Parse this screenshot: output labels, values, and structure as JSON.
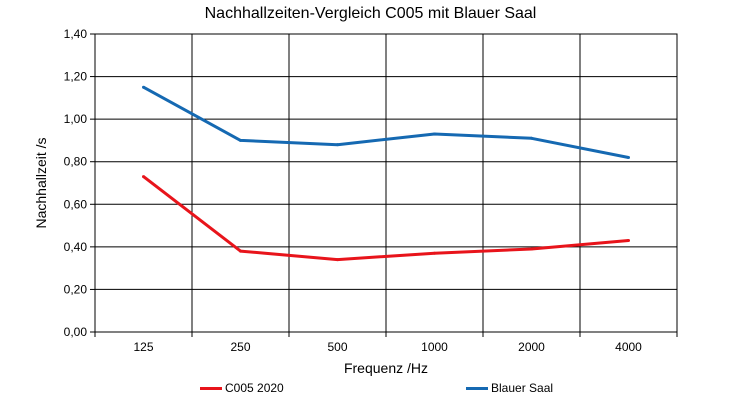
{
  "chart_data": {
    "type": "line",
    "title": "Nachhallzeiten-Vergleich C005 mit Blauer Saal",
    "xlabel": "Frequenz /Hz",
    "ylabel": "Nachhallzeit /s",
    "categories": [
      "125",
      "250",
      "500",
      "1000",
      "2000",
      "4000"
    ],
    "ylim": [
      0,
      1.4
    ],
    "yticks": [
      "0,00",
      "0,20",
      "0,40",
      "0,60",
      "0,80",
      "1,00",
      "1,20",
      "1,40"
    ],
    "grid": true,
    "legend_position": "bottom",
    "series": [
      {
        "name": "C005 2020",
        "color": "#e8141b",
        "values": [
          0.73,
          0.38,
          0.34,
          0.37,
          0.39,
          0.43
        ]
      },
      {
        "name": "Blauer Saal",
        "color": "#1569b2",
        "values": [
          1.15,
          0.9,
          0.88,
          0.93,
          0.91,
          0.82
        ]
      }
    ]
  }
}
